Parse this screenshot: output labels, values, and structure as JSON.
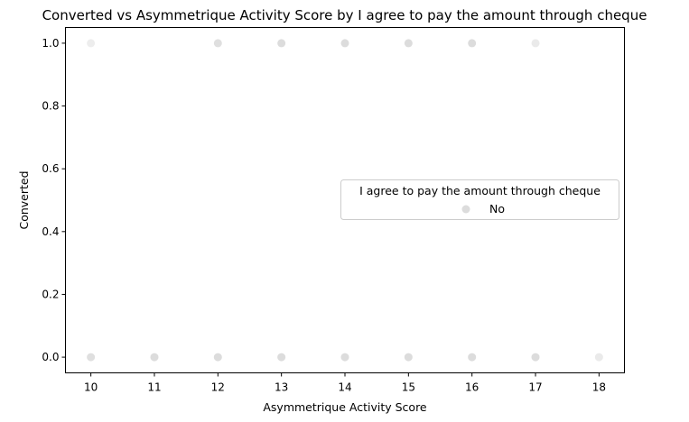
{
  "chart_data": {
    "type": "scatter",
    "title": "Converted vs Asymmetrique Activity Score by I agree to pay the amount through cheque",
    "xlabel": "Asymmetrique Activity Score",
    "ylabel": "Converted",
    "xlim": [
      9.6,
      18.4
    ],
    "ylim": [
      -0.05,
      1.05
    ],
    "xticks": [
      10,
      11,
      12,
      13,
      14,
      15,
      16,
      17,
      18
    ],
    "yticks": [
      0.0,
      0.2,
      0.4,
      0.6,
      0.8,
      1.0
    ],
    "ytick_labels": [
      "0.0",
      "0.2",
      "0.4",
      "0.6",
      "0.8",
      "1.0"
    ],
    "grid": false,
    "legend": {
      "title": "I agree to pay the amount through cheque",
      "placement": "center-right",
      "entries": [
        "No"
      ]
    },
    "series": [
      {
        "name": "No",
        "color": "#dcdcdc",
        "points": [
          {
            "x": 10,
            "y": 1,
            "alpha": 0.5
          },
          {
            "x": 12,
            "y": 1,
            "alpha": 0.9
          },
          {
            "x": 13,
            "y": 1,
            "alpha": 1.0
          },
          {
            "x": 14,
            "y": 1,
            "alpha": 1.0
          },
          {
            "x": 15,
            "y": 1,
            "alpha": 1.0
          },
          {
            "x": 16,
            "y": 1,
            "alpha": 1.0
          },
          {
            "x": 17,
            "y": 1,
            "alpha": 0.6
          },
          {
            "x": 10,
            "y": 0,
            "alpha": 0.9
          },
          {
            "x": 11,
            "y": 0,
            "alpha": 1.0
          },
          {
            "x": 12,
            "y": 0,
            "alpha": 1.0
          },
          {
            "x": 13,
            "y": 0,
            "alpha": 1.0
          },
          {
            "x": 14,
            "y": 0,
            "alpha": 1.0
          },
          {
            "x": 15,
            "y": 0,
            "alpha": 1.0
          },
          {
            "x": 16,
            "y": 0,
            "alpha": 1.0
          },
          {
            "x": 17,
            "y": 0,
            "alpha": 1.0
          },
          {
            "x": 18,
            "y": 0,
            "alpha": 0.6
          }
        ]
      }
    ]
  }
}
